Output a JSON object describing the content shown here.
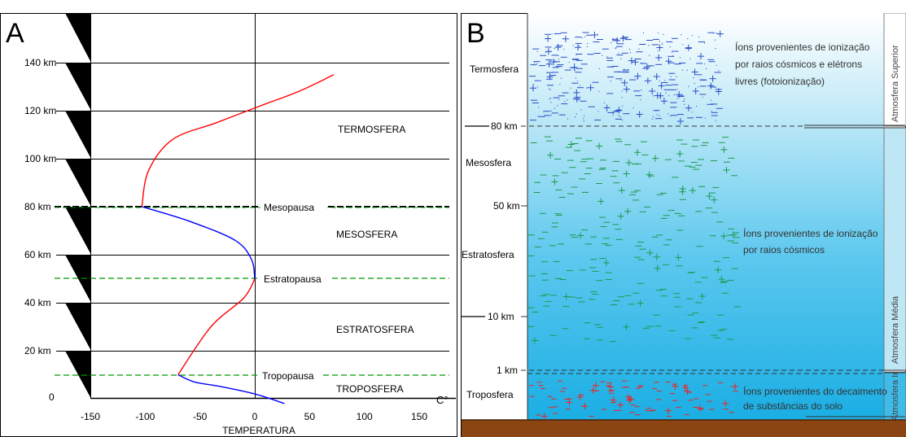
{
  "panel_a": {
    "letter": "A",
    "altitude_labels": [
      "140 km",
      "120 km",
      "100 km",
      "80 km",
      "60 km",
      "40 km",
      "20 km",
      "0"
    ],
    "x_ticks": [
      "-150",
      "-100",
      "-50",
      "0",
      "50",
      "100",
      "150"
    ],
    "x_unit": "C°",
    "x_title": "TEMPERATURA",
    "layers": [
      "TERMOSFERA",
      "MESOSFERA",
      "ESTRATOSFERA",
      "TROPOSFERA"
    ],
    "boundaries": [
      "Mesopausa",
      "Estratopausa",
      "Tropopausa"
    ],
    "colors": {
      "warming": "#ff0000",
      "cooling": "#0000ff",
      "boundary": "#009900",
      "mesopause": "#000000"
    },
    "chart_data": {
      "type": "line",
      "xlabel": "TEMPERATURA",
      "xlim": [
        -150,
        150
      ],
      "ylim": [
        0,
        140
      ],
      "segments": [
        {
          "color": "red",
          "points": [
            [
              -70,
              10
            ],
            [
              -40,
              30
            ],
            [
              -10,
              42
            ],
            [
              0,
              50
            ]
          ]
        },
        {
          "color": "blue",
          "points": [
            [
              0,
              50
            ],
            [
              -3,
              58
            ],
            [
              -18,
              66
            ],
            [
              -60,
              74
            ],
            [
              -103,
              80
            ]
          ]
        },
        {
          "color": "red",
          "points": [
            [
              -103,
              80
            ],
            [
              -97,
              95
            ],
            [
              -75,
              108
            ],
            [
              -35,
              115
            ],
            [
              5,
              122
            ],
            [
              40,
              128
            ],
            [
              72,
              135
            ]
          ]
        },
        {
          "color": "blue",
          "points": [
            [
              27,
              -2
            ],
            [
              0,
              2
            ],
            [
              -30,
              5
            ],
            [
              -55,
              7
            ],
            [
              -70,
              10
            ]
          ]
        }
      ]
    }
  },
  "panel_b": {
    "letter": "B",
    "left_labels": [
      "Termosfera",
      "80 km",
      "Mesosfera",
      "50 km",
      "Estratosfera",
      "10 km",
      "1 km",
      "Troposfera"
    ],
    "ion_texts": [
      "Íons provenientes de ionização",
      "por raios cósmicos e elétrons",
      "livres (fotoionização)",
      "Íons provenientes de ionização",
      "por raios cósmicos",
      "Íons provenientes do decaimento",
      "de substâncias do solo"
    ],
    "side_labels": [
      "Atmosfera Superior",
      "Atmosfera Média",
      "Atmosfera Inferior"
    ],
    "colors": {
      "sky_top": "#ffffff",
      "sky_bottom": "#1fb0e6",
      "ground": "#8b4513",
      "thermo_ions": "#2a4fc8",
      "middle_ions": "#1e9a50",
      "lower_ions": "#ee2222"
    }
  }
}
